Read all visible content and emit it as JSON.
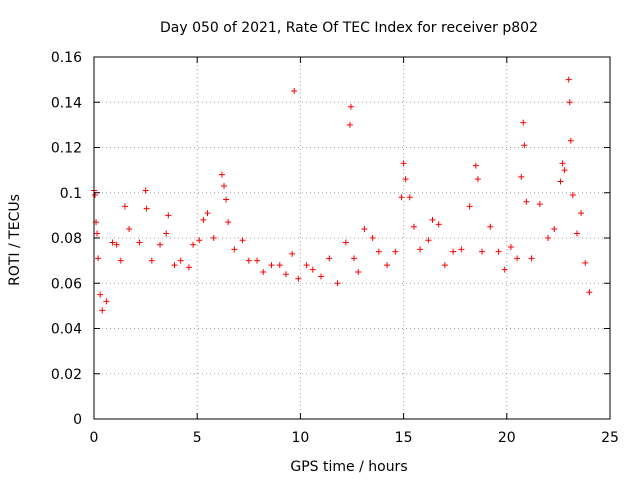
{
  "chart_data": {
    "type": "scatter",
    "title": "Day 050 of 2021, Rate Of TEC Index for receiver p802",
    "xlabel": "GPS time / hours",
    "ylabel": "ROTI / TECUs",
    "xlim": [
      0,
      25
    ],
    "ylim": [
      0,
      0.16
    ],
    "x_ticks": [
      0,
      5,
      10,
      15,
      20,
      25
    ],
    "x_tick_labels": [
      "0",
      "5",
      "10",
      "15",
      "20",
      "25"
    ],
    "y_ticks": [
      0,
      0.02,
      0.04,
      0.06,
      0.08,
      0.1,
      0.12,
      0.14,
      0.16
    ],
    "y_tick_labels": [
      "0",
      "0.02",
      "0.04",
      "0.06",
      "0.08",
      "0.1",
      "0.12",
      "0.14",
      "0.16"
    ],
    "grid": true,
    "marker": "+",
    "color": "#ff0000",
    "series": [
      {
        "points": [
          [
            0.0,
            0.101
          ],
          [
            0.05,
            0.099
          ],
          [
            0.1,
            0.087
          ],
          [
            0.15,
            0.082
          ],
          [
            0.2,
            0.071
          ],
          [
            0.3,
            0.055
          ],
          [
            0.4,
            0.048
          ],
          [
            0.6,
            0.052
          ],
          [
            0.9,
            0.078
          ],
          [
            1.1,
            0.077
          ],
          [
            1.3,
            0.07
          ],
          [
            1.5,
            0.094
          ],
          [
            1.7,
            0.084
          ],
          [
            2.2,
            0.078
          ],
          [
            2.5,
            0.101
          ],
          [
            2.55,
            0.093
          ],
          [
            2.8,
            0.07
          ],
          [
            3.2,
            0.077
          ],
          [
            3.5,
            0.082
          ],
          [
            3.6,
            0.09
          ],
          [
            3.9,
            0.068
          ],
          [
            4.2,
            0.07
          ],
          [
            4.6,
            0.067
          ],
          [
            4.8,
            0.077
          ],
          [
            5.1,
            0.079
          ],
          [
            5.3,
            0.088
          ],
          [
            5.5,
            0.091
          ],
          [
            5.8,
            0.08
          ],
          [
            6.2,
            0.108
          ],
          [
            6.3,
            0.103
          ],
          [
            6.4,
            0.097
          ],
          [
            6.5,
            0.087
          ],
          [
            6.8,
            0.075
          ],
          [
            7.2,
            0.079
          ],
          [
            7.5,
            0.07
          ],
          [
            7.9,
            0.07
          ],
          [
            8.2,
            0.065
          ],
          [
            8.6,
            0.068
          ],
          [
            9.0,
            0.068
          ],
          [
            9.3,
            0.064
          ],
          [
            9.6,
            0.073
          ],
          [
            9.7,
            0.145
          ],
          [
            9.9,
            0.062
          ],
          [
            10.3,
            0.068
          ],
          [
            10.6,
            0.066
          ],
          [
            11.0,
            0.063
          ],
          [
            11.4,
            0.071
          ],
          [
            11.8,
            0.06
          ],
          [
            12.2,
            0.078
          ],
          [
            12.4,
            0.13
          ],
          [
            12.45,
            0.138
          ],
          [
            12.6,
            0.071
          ],
          [
            12.8,
            0.065
          ],
          [
            13.1,
            0.084
          ],
          [
            13.5,
            0.08
          ],
          [
            13.8,
            0.074
          ],
          [
            14.2,
            0.068
          ],
          [
            14.6,
            0.074
          ],
          [
            14.9,
            0.098
          ],
          [
            15.0,
            0.113
          ],
          [
            15.1,
            0.106
          ],
          [
            15.3,
            0.098
          ],
          [
            15.5,
            0.085
          ],
          [
            15.8,
            0.075
          ],
          [
            16.2,
            0.079
          ],
          [
            16.4,
            0.088
          ],
          [
            16.7,
            0.086
          ],
          [
            17.0,
            0.068
          ],
          [
            17.4,
            0.074
          ],
          [
            17.8,
            0.075
          ],
          [
            18.2,
            0.094
          ],
          [
            18.5,
            0.112
          ],
          [
            18.6,
            0.106
          ],
          [
            18.8,
            0.074
          ],
          [
            19.2,
            0.085
          ],
          [
            19.6,
            0.074
          ],
          [
            19.9,
            0.066
          ],
          [
            20.2,
            0.076
          ],
          [
            20.5,
            0.071
          ],
          [
            20.7,
            0.107
          ],
          [
            20.8,
            0.131
          ],
          [
            20.85,
            0.121
          ],
          [
            20.95,
            0.096
          ],
          [
            21.2,
            0.071
          ],
          [
            21.6,
            0.095
          ],
          [
            22.0,
            0.08
          ],
          [
            22.3,
            0.084
          ],
          [
            22.6,
            0.105
          ],
          [
            22.7,
            0.113
          ],
          [
            22.8,
            0.11
          ],
          [
            23.0,
            0.15
          ],
          [
            23.05,
            0.14
          ],
          [
            23.1,
            0.123
          ],
          [
            23.2,
            0.099
          ],
          [
            23.4,
            0.082
          ],
          [
            23.6,
            0.091
          ],
          [
            23.8,
            0.069
          ],
          [
            24.0,
            0.056
          ]
        ]
      }
    ]
  }
}
